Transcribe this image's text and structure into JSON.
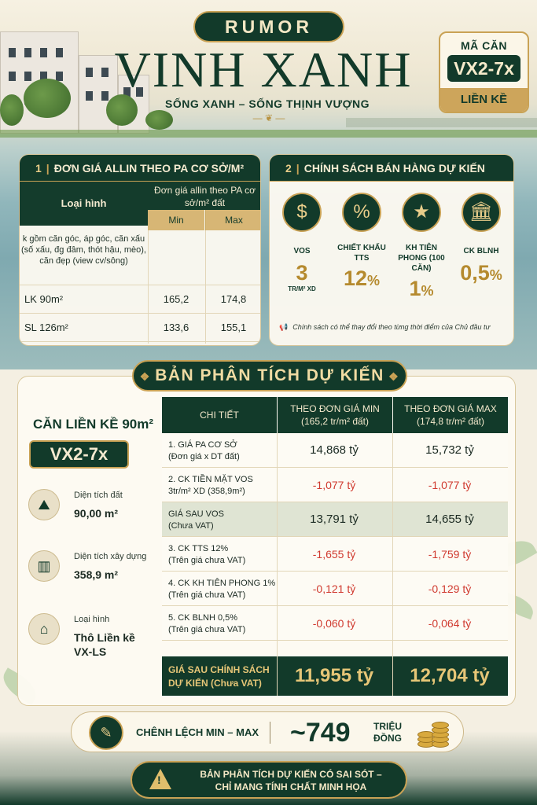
{
  "header": {
    "brand": "RUMOR",
    "title": "VINH XANH",
    "slogan": "SỐNG XANH – SỐNG THỊNH VƯỢNG"
  },
  "unit_code": {
    "label": "MÃ CĂN",
    "code": "VX2-7x",
    "type": "LIỀN KỀ"
  },
  "price_table": {
    "number": "1",
    "title": "ĐƠN GIÁ ALLIN THEO PA CƠ SỞ/M² ĐẤT",
    "col_type": "Loại hình",
    "col_price": "Đơn giá allin theo PA cơ sở/m² đất",
    "col_min": "Min",
    "col_max": "Max",
    "note": "k gồm căn góc, áp góc, căn xấu (số xấu, đg đâm, thót hậu, mèo), căn đẹp (view cv/sông)",
    "rows": [
      {
        "type": "LK 90m²",
        "min": "165,2",
        "max": "174,8"
      },
      {
        "type": "SL 126m²",
        "min": "133,6",
        "max": "155,1"
      }
    ]
  },
  "policy": {
    "number": "2",
    "title": "CHÍNH SÁCH BÁN HÀNG DỰ KIẾN",
    "items": [
      {
        "icon": "money-stack-icon",
        "label": "VOS",
        "value": "3",
        "unit": "TR/M² XD"
      },
      {
        "icon": "discount-tag-icon",
        "label": "CHIẾT KHẤU TTS",
        "value": "12",
        "unit": "%"
      },
      {
        "icon": "vip-group-icon",
        "label": "KH TIÊN PHONG (100 CĂN)",
        "value": "1",
        "unit": "%"
      },
      {
        "icon": "bank-icon",
        "label": "CK BLNH",
        "value": "0,5",
        "unit": "%"
      }
    ],
    "disclaimer": "Chính sách có thể thay đổi theo từng thời điểm của Chủ đầu tư"
  },
  "analysis": {
    "banner": "BẢN PHÂN TÍCH DỰ KIẾN",
    "unit_title": "CĂN LIỀN KỀ 90m²",
    "unit_code": "VX2-7x",
    "facts": [
      {
        "icon": "land-area-icon",
        "label": "Diện tích đất",
        "value": "90,00 m²"
      },
      {
        "icon": "building-icon",
        "label": "Diện tích xây dựng",
        "value": "358,9 m²"
      },
      {
        "icon": "house-icon",
        "label": "Loại hình",
        "value": "Thô Liền kề VX-LS"
      }
    ],
    "headers": {
      "detail": "CHI TIẾT",
      "min": "THEO ĐƠN GIÁ MIN",
      "min_sub": "(165,2 tr/m² đất)",
      "max": "THEO ĐƠN GIÁ MAX",
      "max_sub": "(174,8 tr/m² đất)"
    },
    "rows": [
      {
        "label": "1. GIÁ PA CƠ SỞ",
        "sub": "(Đơn giá x DT đất)",
        "min": "14,868 tỷ",
        "max": "15,732 tỷ",
        "kind": "pos"
      },
      {
        "label": "2. CK TIỀN MẶT VOS",
        "sub": "3tr/m² XD (358,9m²)",
        "min": "-1,077 tỷ",
        "max": "-1,077 tỷ",
        "kind": "neg"
      },
      {
        "label": "GIÁ SAU VOS",
        "sub": "(Chưa VAT)",
        "min": "13,791 tỷ",
        "max": "14,655 tỷ",
        "kind": "hl"
      },
      {
        "label": "3. CK TTS 12%",
        "sub": "(Trên giá chưa VAT)",
        "min": "-1,655 tỷ",
        "max": "-1,759 tỷ",
        "kind": "neg"
      },
      {
        "label": "4. CK KH TIÊN PHONG 1%",
        "sub": "(Trên giá chưa VAT)",
        "min": "-0,121 tỷ",
        "max": "-0,129 tỷ",
        "kind": "neg"
      },
      {
        "label": "5. CK BLNH 0,5%",
        "sub": "(Trên giá chưa VAT)",
        "min": "-0,060 tỷ",
        "max": "-0,064 tỷ",
        "kind": "neg"
      }
    ],
    "final": {
      "label": "GIÁ SAU CHÍNH SÁCH",
      "sub": "DỰ KIẾN (Chưa VAT)",
      "min": "11,955 tỷ",
      "max": "12,704 tỷ"
    }
  },
  "difference": {
    "label": "CHÊNH LỆCH MIN – MAX",
    "value": "~749",
    "unit_line1": "TRIỆU",
    "unit_line2": "ĐỒNG"
  },
  "warning": {
    "line1": "BẢN PHÂN TÍCH DỰ KIẾN CÓ SAI SÓT –",
    "line2": "CHỈ MANG TÍNH CHẤT MINH HỌA"
  },
  "colors": {
    "primary": "#123a2a",
    "gold": "#c9a255",
    "negative": "#d03a2f"
  }
}
